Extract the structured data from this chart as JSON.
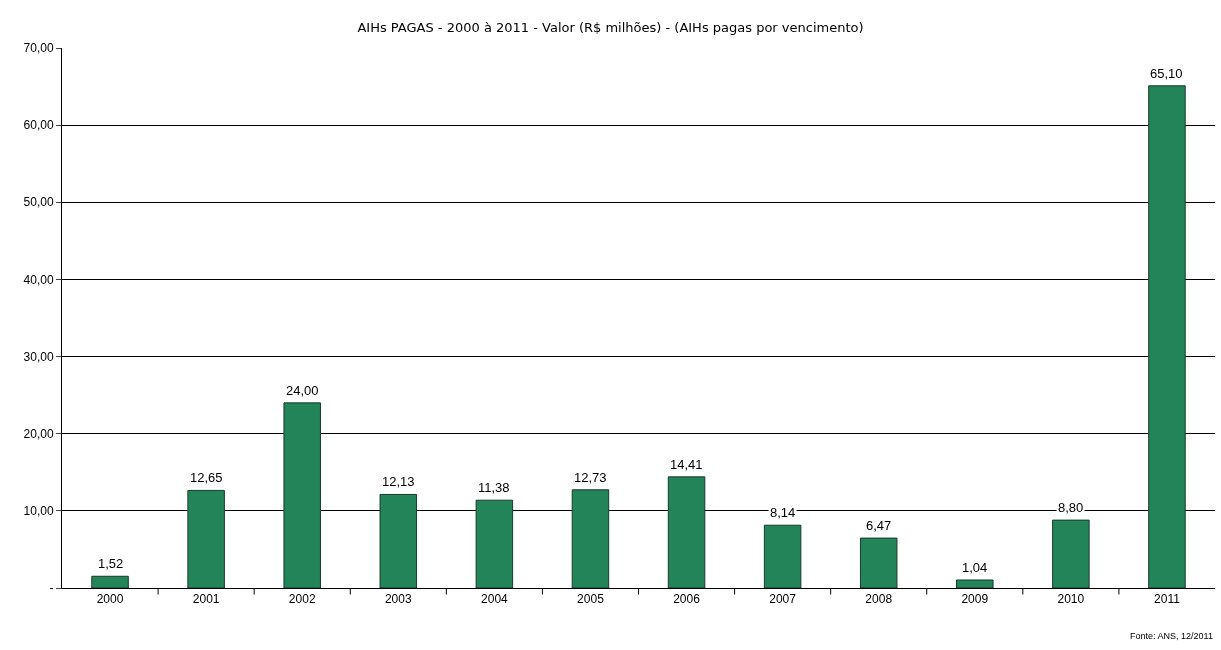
{
  "chart_data": {
    "type": "bar",
    "title": "AIHs PAGAS - 2000 à 2011 - Valor (R$ milhões) - (AIHs pagas por vencimento)",
    "categories": [
      "2000",
      "2001",
      "2002",
      "2003",
      "2004",
      "2005",
      "2006",
      "2007",
      "2008",
      "2009",
      "2010",
      "2011"
    ],
    "values": [
      1.52,
      12.65,
      24.0,
      12.13,
      11.38,
      12.73,
      14.41,
      8.14,
      6.47,
      1.04,
      8.8,
      65.1
    ],
    "value_labels": [
      "1,52",
      "12,65",
      "24,00",
      "12,13",
      "11,38",
      "12,73",
      "14,41",
      "8,14",
      "6,47",
      "1,04",
      "8,80",
      "65,10"
    ],
    "color": "#23845a",
    "ylim": [
      0,
      70
    ],
    "yticks": [
      {
        "value": 0,
        "label": "-"
      },
      {
        "value": 10,
        "label": "10,00"
      },
      {
        "value": 20,
        "label": "20,00"
      },
      {
        "value": 30,
        "label": "30,00"
      },
      {
        "value": 40,
        "label": "40,00"
      },
      {
        "value": 50,
        "label": "50,00"
      },
      {
        "value": 60,
        "label": "60,00"
      },
      {
        "value": 70,
        "label": "70,00"
      }
    ],
    "grid": "y",
    "annotations": [
      "Fonte: ANS, 12/2011"
    ]
  }
}
